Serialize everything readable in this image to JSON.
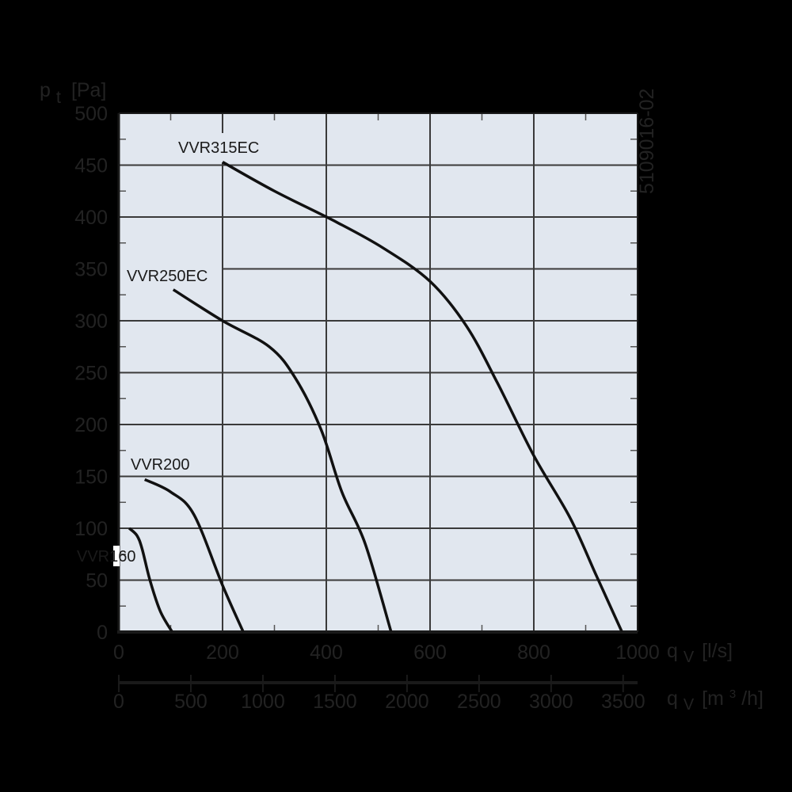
{
  "chart_data": {
    "type": "line",
    "title": "",
    "ylabel": "p_t [Pa]",
    "xlabel": "q_V [l/s]",
    "xlabel_secondary": "q_V [m³/h]",
    "xlim": [
      0,
      1000
    ],
    "ylim": [
      0,
      500
    ],
    "x_ticks": [
      "0",
      "200",
      "400",
      "600",
      "800",
      "1000"
    ],
    "x_ticks_secondary": [
      "0",
      "500",
      "1000",
      "1500",
      "2000",
      "2500",
      "3000",
      "3500"
    ],
    "y_ticks": [
      "0",
      "50",
      "100",
      "150",
      "200",
      "250",
      "300",
      "350",
      "400",
      "450",
      "500"
    ],
    "grid": true,
    "side_note": "5109016-02",
    "series": [
      {
        "name": "VVR160",
        "x": [
          20,
          35,
          45,
          60,
          80,
          103
        ],
        "y": [
          100,
          93,
          80,
          50,
          20,
          0
        ]
      },
      {
        "name": "VVR200",
        "x": [
          50,
          100,
          145,
          200,
          240
        ],
        "y": [
          147,
          135,
          113,
          45,
          0
        ]
      },
      {
        "name": "VVR250EC",
        "x": [
          105,
          200,
          290,
          340,
          390,
          430,
          475,
          525
        ],
        "y": [
          330,
          300,
          275,
          245,
          195,
          135,
          85,
          0
        ]
      },
      {
        "name": "VVR315EC",
        "x": [
          200,
          300,
          420,
          510,
          600,
          670,
          730,
          800,
          870,
          920,
          970
        ],
        "y": [
          453,
          425,
          395,
          370,
          338,
          295,
          240,
          170,
          110,
          55,
          0
        ]
      }
    ]
  },
  "labels": {
    "y_axis_p": "p",
    "y_axis_sub": "t",
    "y_axis_unit": "[Pa]",
    "x_axis_q": "q",
    "x_axis_sub": "V",
    "x_axis_unit": "[l/s]",
    "x2_axis_q": "q",
    "x2_axis_sub": "V",
    "x2_axis_unit_pre": "[m",
    "x2_axis_unit_sup": "3",
    "x2_axis_unit_post": "/h]",
    "side_note": "5109016-02"
  },
  "colors": {
    "plot_bg": "#e1e7ef",
    "grid": "#3a3a3a",
    "curve": "#111111",
    "text": "#222222",
    "page_bg": "#000000"
  }
}
